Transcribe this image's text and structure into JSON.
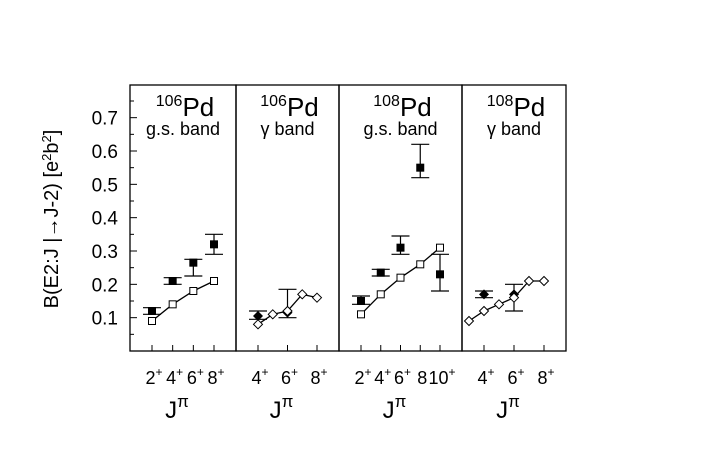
{
  "y_axis": {
    "label_parts": [
      "B(E2:J ",
      "|→",
      "J-2) [e",
      "2",
      "b",
      "2",
      "]"
    ],
    "ticks": [
      "0.1",
      "0.2",
      "0.3",
      "0.4",
      "0.5",
      "0.6",
      "0.7"
    ]
  },
  "colors": {
    "ink": "#000000",
    "background": "#ffffff"
  },
  "chart_data": [
    {
      "type": "scatter",
      "panel_title": {
        "mass": "106",
        "element": "Pd",
        "band": "g.s. band"
      },
      "xlabel": "Jπ",
      "ylim": [
        0.0,
        0.77
      ],
      "x_ticks": [
        {
          "x": 2,
          "label": "2",
          "sup": "+"
        },
        {
          "x": 4,
          "label": "4",
          "sup": "+"
        },
        {
          "x": 6,
          "label": "6",
          "sup": "+"
        },
        {
          "x": 8,
          "label": "8",
          "sup": "+"
        }
      ],
      "series": [
        {
          "marker": "filled-square",
          "points": [
            {
              "x": 2,
              "y": 0.12,
              "err_low": 0.11,
              "err_high": 0.13
            },
            {
              "x": 4,
              "y": 0.21,
              "err_low": 0.2,
              "err_high": 0.22
            },
            {
              "x": 6,
              "y": 0.265,
              "err_low": 0.225,
              "err_high": 0.275
            },
            {
              "x": 8,
              "y": 0.32,
              "err_low": 0.29,
              "err_high": 0.35
            }
          ]
        },
        {
          "marker": "open-square",
          "line": true,
          "points": [
            {
              "x": 2,
              "y": 0.09
            },
            {
              "x": 4,
              "y": 0.14
            },
            {
              "x": 6,
              "y": 0.18
            },
            {
              "x": 8,
              "y": 0.21
            }
          ]
        }
      ]
    },
    {
      "type": "scatter",
      "panel_title": {
        "mass": "106",
        "element": "Pd",
        "band": "γ band"
      },
      "xlabel": "Jπ",
      "ylim": [
        0.0,
        0.77
      ],
      "x_ticks": [
        {
          "x": 4,
          "label": "4",
          "sup": "+"
        },
        {
          "x": 6,
          "label": "6",
          "sup": "+"
        },
        {
          "x": 8,
          "label": "8",
          "sup": "+"
        }
      ],
      "series": [
        {
          "marker": "filled-diamond",
          "points": [
            {
              "x": 4,
              "y": 0.105,
              "err_low": 0.095,
              "err_high": 0.12
            },
            {
              "x": 6,
              "y": 0.115,
              "err_low": 0.1,
              "err_high": 0.185
            }
          ]
        },
        {
          "marker": "open-diamond",
          "line": true,
          "points": [
            {
              "x": 4,
              "y": 0.08
            },
            {
              "x": 5,
              "y": 0.11
            },
            {
              "x": 6,
              "y": 0.12
            },
            {
              "x": 7,
              "y": 0.17
            },
            {
              "x": 8,
              "y": 0.16
            }
          ]
        }
      ]
    },
    {
      "type": "scatter",
      "panel_title": {
        "mass": "108",
        "element": "Pd",
        "band": "g.s. band"
      },
      "xlabel": "Jπ",
      "ylim": [
        0.0,
        0.77
      ],
      "x_ticks": [
        {
          "x": 2,
          "label": "2",
          "sup": "+"
        },
        {
          "x": 4,
          "label": "4",
          "sup": "+"
        },
        {
          "x": 6,
          "label": "6",
          "sup": "+"
        },
        {
          "x": 8,
          "label": "8",
          "sup": ""
        },
        {
          "x": 10,
          "label": "10",
          "sup": "+"
        }
      ],
      "series": [
        {
          "marker": "filled-square",
          "points": [
            {
              "x": 2,
              "y": 0.15,
              "err_low": 0.14,
              "err_high": 0.165
            },
            {
              "x": 4,
              "y": 0.235,
              "err_low": 0.225,
              "err_high": 0.245
            },
            {
              "x": 6,
              "y": 0.31,
              "err_low": 0.29,
              "err_high": 0.345
            },
            {
              "x": 8,
              "y": 0.55,
              "err_low": 0.52,
              "err_high": 0.62
            },
            {
              "x": 10,
              "y": 0.23,
              "err_low": 0.18,
              "err_high": 0.29
            }
          ]
        },
        {
          "marker": "open-square",
          "line": true,
          "points": [
            {
              "x": 2,
              "y": 0.11
            },
            {
              "x": 4,
              "y": 0.17
            },
            {
              "x": 6,
              "y": 0.22
            },
            {
              "x": 8,
              "y": 0.26
            },
            {
              "x": 10,
              "y": 0.31
            }
          ]
        }
      ]
    },
    {
      "type": "scatter",
      "panel_title": {
        "mass": "108",
        "element": "Pd",
        "band": "γ band"
      },
      "xlabel": "Jπ",
      "ylim": [
        0.0,
        0.77
      ],
      "x_ticks": [
        {
          "x": 4,
          "label": "4",
          "sup": "+"
        },
        {
          "x": 6,
          "label": "6",
          "sup": "+"
        },
        {
          "x": 8,
          "label": "8",
          "sup": "+"
        }
      ],
      "series": [
        {
          "marker": "filled-diamond",
          "points": [
            {
              "x": 4,
              "y": 0.17,
              "err_low": 0.16,
              "err_high": 0.18
            },
            {
              "x": 6,
              "y": 0.17,
              "err_low": 0.12,
              "err_high": 0.2
            }
          ]
        },
        {
          "marker": "open-diamond",
          "line": true,
          "points": [
            {
              "x": 3,
              "y": 0.09
            },
            {
              "x": 4,
              "y": 0.12
            },
            {
              "x": 5,
              "y": 0.14
            },
            {
              "x": 6,
              "y": 0.16
            },
            {
              "x": 7,
              "y": 0.21
            },
            {
              "x": 8,
              "y": 0.21
            }
          ]
        }
      ]
    }
  ]
}
